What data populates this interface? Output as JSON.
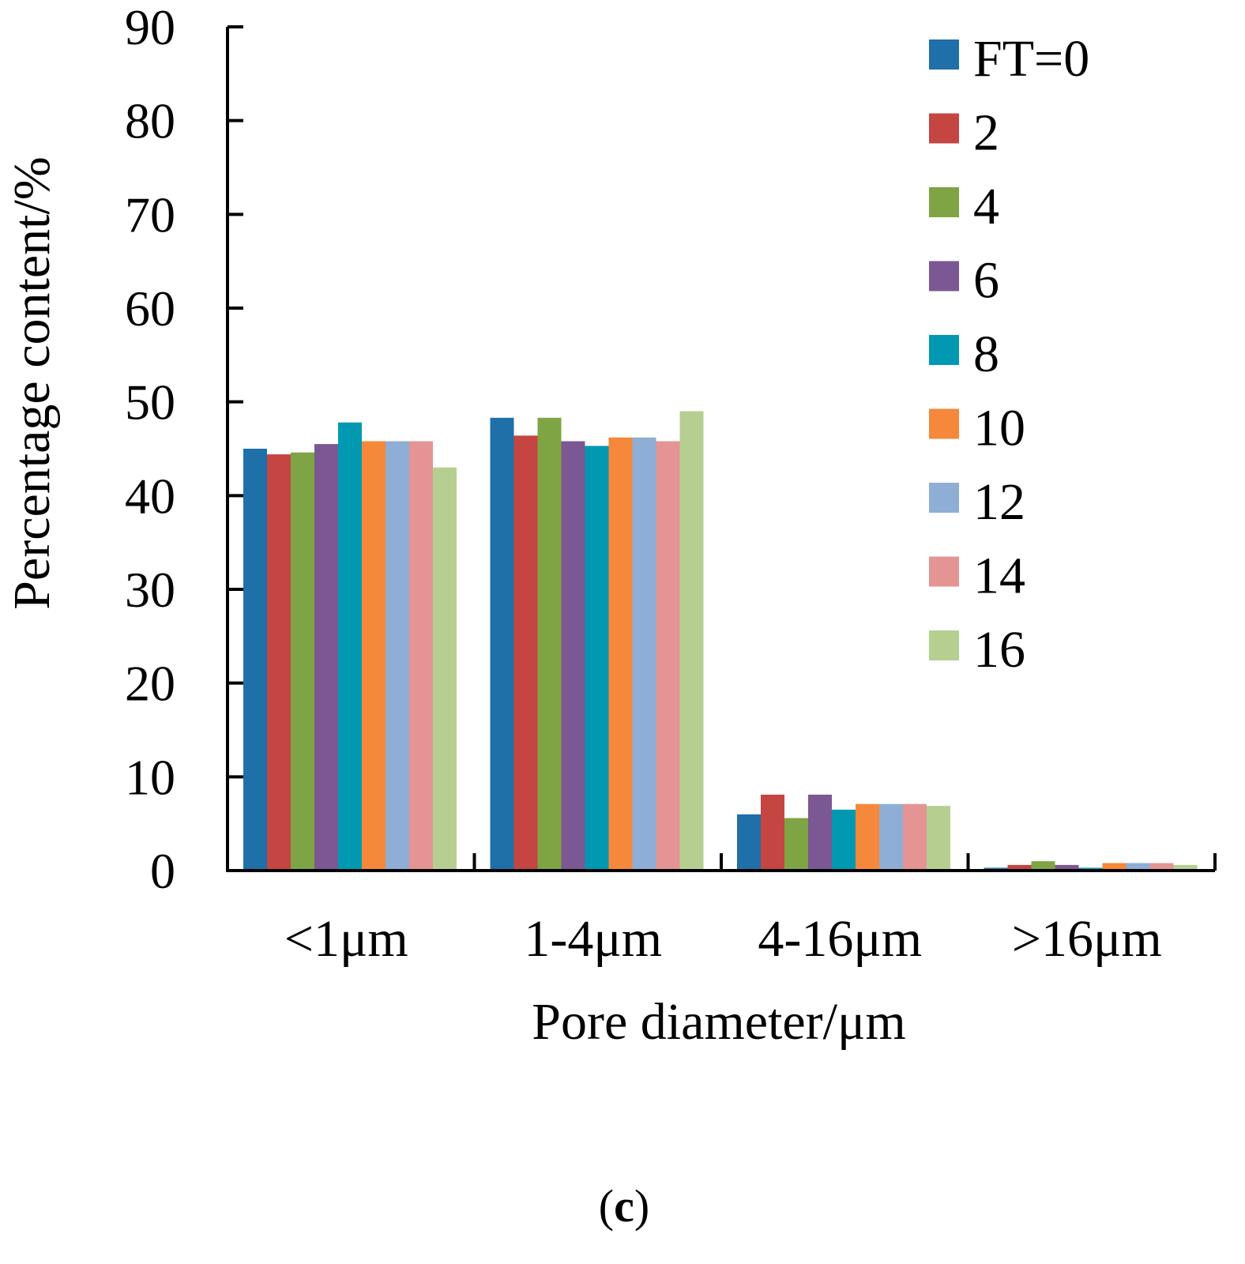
{
  "chart_data": {
    "type": "bar",
    "title": "",
    "xlabel": "Pore diameter/μm",
    "ylabel": "Percentage content/%",
    "ylim": [
      0,
      90
    ],
    "yticks": [
      0,
      10,
      20,
      30,
      40,
      50,
      60,
      70,
      80,
      90
    ],
    "categories": [
      "<1μm",
      "1-4μm",
      "4-16μm",
      ">16μm"
    ],
    "legend_position": "top-right",
    "panel_label": "c",
    "series": [
      {
        "name": "FT=0",
        "color": "#1f6fa8",
        "values": [
          45.0,
          48.3,
          6.0,
          0.3
        ]
      },
      {
        "name": "2",
        "color": "#c44541",
        "values": [
          44.4,
          46.4,
          8.1,
          0.6
        ]
      },
      {
        "name": "4",
        "color": "#7ea443",
        "values": [
          44.6,
          48.3,
          5.6,
          1.0
        ]
      },
      {
        "name": "6",
        "color": "#7b5793",
        "values": [
          45.5,
          45.8,
          8.1,
          0.6
        ]
      },
      {
        "name": "8",
        "color": "#0099b1",
        "values": [
          47.8,
          45.3,
          6.5,
          0.3
        ]
      },
      {
        "name": "10",
        "color": "#f5883a",
        "values": [
          45.8,
          46.2,
          7.1,
          0.8
        ]
      },
      {
        "name": "12",
        "color": "#8eaed5",
        "values": [
          45.8,
          46.2,
          7.1,
          0.8
        ]
      },
      {
        "name": "14",
        "color": "#e59494",
        "values": [
          45.8,
          45.8,
          7.1,
          0.8
        ]
      },
      {
        "name": "16",
        "color": "#b6cf91",
        "values": [
          43.0,
          49.0,
          6.9,
          0.6
        ]
      }
    ]
  }
}
